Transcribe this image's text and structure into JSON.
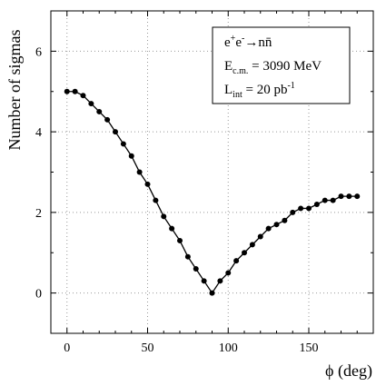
{
  "chart_data": {
    "type": "line",
    "xlabel": "ϕ (deg)",
    "ylabel": "Number of sigmas",
    "xlim": [
      -10,
      190
    ],
    "ylim": [
      -1,
      7
    ],
    "xticks": [
      0,
      50,
      100,
      150
    ],
    "yticks": [
      0,
      2,
      4,
      6
    ],
    "grid": true,
    "legend_position": "top-right",
    "annotations": [
      {
        "line": "e⁺e⁻→nn̄",
        "main": "e",
        "sup1": "+",
        "mid": "e",
        "sup2": "-",
        "tail": "→nn̄"
      },
      {
        "line": "Ec.m. = 3090 MeV",
        "main": "E",
        "sub": "c.m.",
        "tail": " = 3090 MeV"
      },
      {
        "line": "Lint = 20 pb-1",
        "main": "L",
        "sub": "int",
        "tail": " = 20 pb",
        "sup": "-1"
      }
    ],
    "series": [
      {
        "x": [
          0,
          5,
          10,
          15,
          20,
          25,
          30,
          35,
          40,
          45,
          50,
          55,
          60,
          65,
          70,
          75,
          80,
          85,
          90,
          95,
          100,
          105,
          110,
          115,
          120,
          125,
          130,
          135,
          140,
          145,
          150,
          155,
          160,
          165,
          170,
          175,
          180
        ],
        "y": [
          5.0,
          5.0,
          4.9,
          4.7,
          4.5,
          4.3,
          4.0,
          3.7,
          3.4,
          3.0,
          2.7,
          2.3,
          1.9,
          1.6,
          1.3,
          0.9,
          0.6,
          0.3,
          0.0,
          0.3,
          0.5,
          0.8,
          1.0,
          1.2,
          1.4,
          1.6,
          1.7,
          1.8,
          2.0,
          2.1,
          2.1,
          2.2,
          2.3,
          2.3,
          2.4,
          2.4,
          2.4
        ]
      }
    ]
  }
}
